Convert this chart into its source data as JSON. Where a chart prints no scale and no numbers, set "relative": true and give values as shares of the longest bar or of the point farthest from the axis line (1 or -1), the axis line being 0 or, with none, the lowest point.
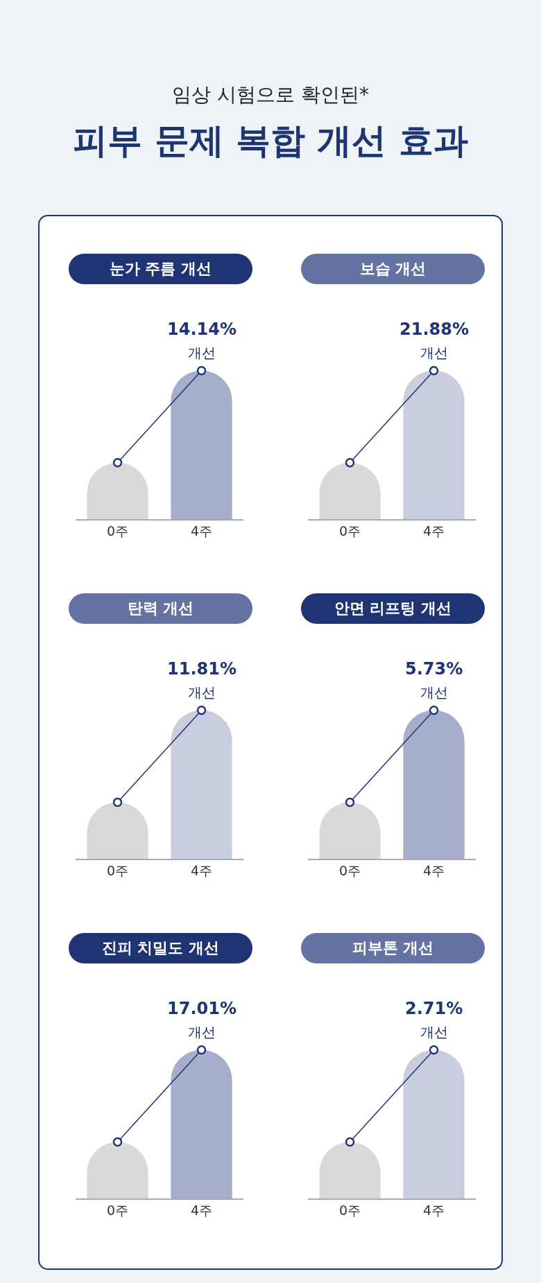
{
  "chart_data": [
    {
      "type": "bar",
      "title": "눈가 주름 개선",
      "categories": [
        "0주",
        "4주"
      ],
      "relative": true,
      "marker": "circle",
      "annotations": [
        "임상 시험으로 확인된*",
        "피부 문제 복합 개선 효과",
        {
          "text": "14.14%",
          "x": "4주",
          "y": 1
        },
        {
          "text": "개선",
          "x": "4주",
          "y": 1
        }
      ],
      "series": [
        {
          "colors": [
            "#d9d9d9",
            "#a6aecb"
          ],
          "values": [
            0.38,
            1
          ]
        },
        {
          "type": "line",
          "color": "#1f3473",
          "values": [
            0.38,
            1
          ]
        }
      ]
    },
    {
      "type": "bar",
      "title": "보습 개선",
      "categories": [
        "0주",
        "4주"
      ],
      "relative": true,
      "marker": "circle",
      "annotations": [
        {
          "text": "21.88%",
          "x": "4주",
          "y": 1
        },
        {
          "text": "개선",
          "x": "4주",
          "y": 1
        }
      ],
      "series": [
        {
          "colors": [
            "#d9d9d9",
            "#c9cedf"
          ],
          "values": [
            0.38,
            1
          ]
        },
        {
          "type": "line",
          "color": "#1f3473",
          "values": [
            0.38,
            1
          ]
        }
      ]
    },
    {
      "type": "bar",
      "title": "탄력 개선",
      "categories": [
        "0주",
        "4주"
      ],
      "relative": true,
      "marker": "circle",
      "annotations": [
        {
          "text": "11.81%",
          "x": "4주",
          "y": 1
        },
        {
          "text": "개선",
          "x": "4주",
          "y": 1
        }
      ],
      "series": [
        {
          "colors": [
            "#d9d9d9",
            "#c9cedf"
          ],
          "values": [
            0.38,
            1
          ]
        },
        {
          "type": "line",
          "color": "#1f3473",
          "values": [
            0.38,
            1
          ]
        }
      ]
    },
    {
      "type": "bar",
      "title": "안면 리프팅 개선",
      "categories": [
        "0주",
        "4주"
      ],
      "relative": true,
      "marker": "circle",
      "annotations": [
        {
          "text": "5.73%",
          "x": "4주",
          "y": 1
        },
        {
          "text": "개선",
          "x": "4주",
          "y": 1
        }
      ],
      "series": [
        {
          "colors": [
            "#d9d9d9",
            "#a6aecb"
          ],
          "values": [
            0.38,
            1
          ]
        },
        {
          "type": "line",
          "color": "#1f3473",
          "values": [
            0.38,
            1
          ]
        }
      ]
    },
    {
      "type": "bar",
      "title": "진피 치밀도 개선",
      "categories": [
        "0주",
        "4주"
      ],
      "relative": true,
      "marker": "circle",
      "annotations": [
        {
          "text": "17.01%",
          "x": "4주",
          "y": 1
        },
        {
          "text": "개선",
          "x": "4주",
          "y": 1
        }
      ],
      "series": [
        {
          "colors": [
            "#d9d9d9",
            "#a6aecb"
          ],
          "values": [
            0.38,
            1
          ]
        },
        {
          "type": "line",
          "color": "#1f3473",
          "values": [
            0.38,
            1
          ]
        }
      ]
    },
    {
      "type": "bar",
      "title": "피부톤 개선",
      "categories": [
        "0주",
        "4주"
      ],
      "relative": true,
      "marker": "circle",
      "annotations": [
        {
          "text": "2.71%",
          "x": "4주",
          "y": 1
        },
        {
          "text": "개선",
          "x": "4주",
          "y": 1
        }
      ],
      "series": [
        {
          "colors": [
            "#d9d9d9",
            "#c9cedf"
          ],
          "values": [
            0.38,
            1
          ]
        },
        {
          "type": "line",
          "color": "#1f3473",
          "values": [
            0.38,
            1
          ]
        }
      ]
    }
  ]
}
